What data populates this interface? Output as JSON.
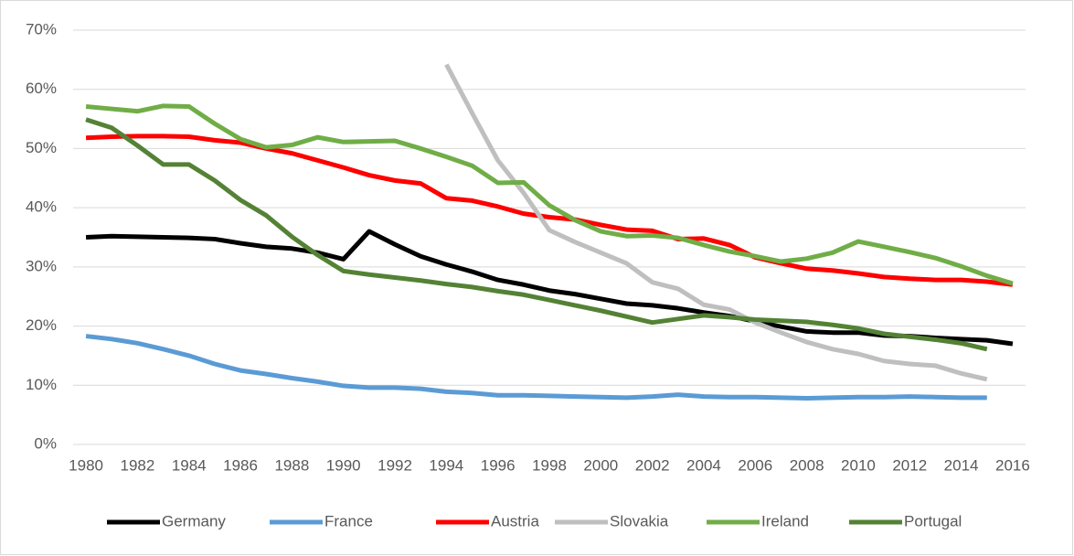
{
  "chart_data": {
    "type": "line",
    "x": [
      1980,
      1981,
      1982,
      1983,
      1984,
      1985,
      1986,
      1987,
      1988,
      1989,
      1990,
      1991,
      1992,
      1993,
      1994,
      1995,
      1996,
      1997,
      1998,
      1999,
      2000,
      2001,
      2002,
      2003,
      2004,
      2005,
      2006,
      2007,
      2008,
      2009,
      2010,
      2011,
      2012,
      2013,
      2014,
      2015,
      2016
    ],
    "xlim": [
      1979.5,
      2016.5
    ],
    "xticks": [
      1980,
      1982,
      1984,
      1986,
      1988,
      1990,
      1992,
      1994,
      1996,
      1998,
      2000,
      2002,
      2004,
      2006,
      2008,
      2010,
      2012,
      2014,
      2016
    ],
    "ylim": [
      0,
      70
    ],
    "yticks": [
      {
        "value": 0,
        "label": "0%"
      },
      {
        "value": 10,
        "label": "10%"
      },
      {
        "value": 20,
        "label": "20%"
      },
      {
        "value": 30,
        "label": "30%"
      },
      {
        "value": 40,
        "label": "40%"
      },
      {
        "value": 50,
        "label": "50%"
      },
      {
        "value": 60,
        "label": "60%"
      },
      {
        "value": 70,
        "label": "70%"
      }
    ],
    "grid": true,
    "legend": "bottom",
    "series": [
      {
        "name": "Germany",
        "color": "#000000",
        "values": [
          35,
          35.2,
          35.1,
          35,
          34.9,
          34.7,
          34,
          33.4,
          33.1,
          32.4,
          31.3,
          36,
          33.8,
          31.8,
          30.4,
          29.2,
          27.8,
          27,
          26,
          25.4,
          24.6,
          23.8,
          23.5,
          23,
          22.3,
          21.7,
          20.8,
          19.9,
          19.1,
          18.9,
          18.9,
          18.4,
          18.3,
          18,
          17.8,
          17.6,
          17
        ]
      },
      {
        "name": "France",
        "color": "#5b9bd5",
        "values": [
          18.3,
          17.8,
          17.1,
          16.1,
          15,
          13.6,
          12.5,
          11.9,
          11.2,
          10.6,
          9.9,
          9.6,
          9.6,
          9.4,
          8.9,
          8.7,
          8.3,
          8.3,
          8.2,
          8.1,
          8,
          7.9,
          8.1,
          8.4,
          8.1,
          8,
          8,
          7.9,
          7.8,
          7.9,
          8,
          8,
          8.1,
          8,
          7.9,
          7.9,
          null
        ]
      },
      {
        "name": "Austria",
        "color": "#ff0000",
        "values": [
          51.8,
          52,
          52.1,
          52.1,
          52,
          51.4,
          51,
          50,
          49.2,
          48,
          46.8,
          45.5,
          44.6,
          44.1,
          41.6,
          41.2,
          40.2,
          39,
          38.4,
          38,
          37.1,
          36.3,
          36.1,
          34.7,
          34.8,
          33.7,
          31.6,
          30.6,
          29.7,
          29.4,
          28.9,
          28.3,
          28,
          27.8,
          27.8,
          27.5,
          27
        ]
      },
      {
        "name": "Slovakia",
        "color": "#bfbfbf",
        "values": [
          null,
          null,
          null,
          null,
          null,
          null,
          null,
          null,
          null,
          null,
          null,
          null,
          null,
          null,
          64.2,
          56,
          48,
          42.5,
          36.2,
          34.2,
          32.4,
          30.6,
          27.4,
          26.3,
          23.6,
          22.8,
          20.6,
          18.9,
          17.3,
          16.1,
          15.3,
          14.1,
          13.6,
          13.3,
          12,
          11,
          null
        ]
      },
      {
        "name": "Ireland",
        "color": "#70ad47",
        "values": [
          57.1,
          56.7,
          56.3,
          57.2,
          57.1,
          54.2,
          51.6,
          50.2,
          50.6,
          51.9,
          51.1,
          51.2,
          51.3,
          50,
          48.6,
          47.1,
          44.2,
          44.3,
          40.4,
          37.9,
          36,
          35.2,
          35.3,
          34.9,
          33.7,
          32.6,
          31.8,
          30.9,
          31.4,
          32.4,
          34.3,
          33.4,
          32.5,
          31.5,
          30.1,
          28.5,
          27.2
        ]
      },
      {
        "name": "Portugal",
        "color": "#548235",
        "values": [
          54.9,
          53.5,
          50.5,
          47.3,
          47.3,
          44.6,
          41.3,
          38.7,
          35.1,
          32,
          29.3,
          28.7,
          28.2,
          27.7,
          27.1,
          26.6,
          25.9,
          25.3,
          24.4,
          23.5,
          22.6,
          21.6,
          20.6,
          21.2,
          21.8,
          21.5,
          21.1,
          20.9,
          20.7,
          20.2,
          19.6,
          18.7,
          18.2,
          17.7,
          17.1,
          16.1,
          null
        ]
      }
    ]
  }
}
